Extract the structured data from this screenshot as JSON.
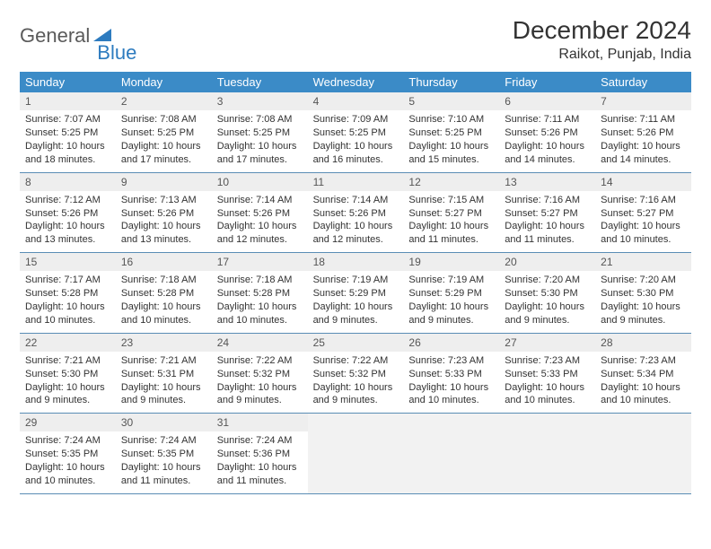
{
  "logo": {
    "text1": "General",
    "text2": "Blue"
  },
  "title": "December 2024",
  "location": "Raikot, Punjab, India",
  "colors": {
    "header_bg": "#3b8bc7",
    "header_fg": "#ffffff",
    "daynum_bg": "#eeeeee",
    "week_border": "#5a8db5",
    "logo_accent": "#2d7bbf",
    "logo_gray": "#5a5a5a"
  },
  "layout": {
    "columns": 7,
    "rows": 5,
    "cell_fontsize": 11,
    "header_fontsize": 13
  },
  "weekdays": [
    "Sunday",
    "Monday",
    "Tuesday",
    "Wednesday",
    "Thursday",
    "Friday",
    "Saturday"
  ],
  "days": [
    {
      "n": "1",
      "sunrise": "7:07 AM",
      "sunset": "5:25 PM",
      "dl1": "Daylight: 10 hours",
      "dl2": "and 18 minutes."
    },
    {
      "n": "2",
      "sunrise": "7:08 AM",
      "sunset": "5:25 PM",
      "dl1": "Daylight: 10 hours",
      "dl2": "and 17 minutes."
    },
    {
      "n": "3",
      "sunrise": "7:08 AM",
      "sunset": "5:25 PM",
      "dl1": "Daylight: 10 hours",
      "dl2": "and 17 minutes."
    },
    {
      "n": "4",
      "sunrise": "7:09 AM",
      "sunset": "5:25 PM",
      "dl1": "Daylight: 10 hours",
      "dl2": "and 16 minutes."
    },
    {
      "n": "5",
      "sunrise": "7:10 AM",
      "sunset": "5:25 PM",
      "dl1": "Daylight: 10 hours",
      "dl2": "and 15 minutes."
    },
    {
      "n": "6",
      "sunrise": "7:11 AM",
      "sunset": "5:26 PM",
      "dl1": "Daylight: 10 hours",
      "dl2": "and 14 minutes."
    },
    {
      "n": "7",
      "sunrise": "7:11 AM",
      "sunset": "5:26 PM",
      "dl1": "Daylight: 10 hours",
      "dl2": "and 14 minutes."
    },
    {
      "n": "8",
      "sunrise": "7:12 AM",
      "sunset": "5:26 PM",
      "dl1": "Daylight: 10 hours",
      "dl2": "and 13 minutes."
    },
    {
      "n": "9",
      "sunrise": "7:13 AM",
      "sunset": "5:26 PM",
      "dl1": "Daylight: 10 hours",
      "dl2": "and 13 minutes."
    },
    {
      "n": "10",
      "sunrise": "7:14 AM",
      "sunset": "5:26 PM",
      "dl1": "Daylight: 10 hours",
      "dl2": "and 12 minutes."
    },
    {
      "n": "11",
      "sunrise": "7:14 AM",
      "sunset": "5:26 PM",
      "dl1": "Daylight: 10 hours",
      "dl2": "and 12 minutes."
    },
    {
      "n": "12",
      "sunrise": "7:15 AM",
      "sunset": "5:27 PM",
      "dl1": "Daylight: 10 hours",
      "dl2": "and 11 minutes."
    },
    {
      "n": "13",
      "sunrise": "7:16 AM",
      "sunset": "5:27 PM",
      "dl1": "Daylight: 10 hours",
      "dl2": "and 11 minutes."
    },
    {
      "n": "14",
      "sunrise": "7:16 AM",
      "sunset": "5:27 PM",
      "dl1": "Daylight: 10 hours",
      "dl2": "and 10 minutes."
    },
    {
      "n": "15",
      "sunrise": "7:17 AM",
      "sunset": "5:28 PM",
      "dl1": "Daylight: 10 hours",
      "dl2": "and 10 minutes."
    },
    {
      "n": "16",
      "sunrise": "7:18 AM",
      "sunset": "5:28 PM",
      "dl1": "Daylight: 10 hours",
      "dl2": "and 10 minutes."
    },
    {
      "n": "17",
      "sunrise": "7:18 AM",
      "sunset": "5:28 PM",
      "dl1": "Daylight: 10 hours",
      "dl2": "and 10 minutes."
    },
    {
      "n": "18",
      "sunrise": "7:19 AM",
      "sunset": "5:29 PM",
      "dl1": "Daylight: 10 hours",
      "dl2": "and 9 minutes."
    },
    {
      "n": "19",
      "sunrise": "7:19 AM",
      "sunset": "5:29 PM",
      "dl1": "Daylight: 10 hours",
      "dl2": "and 9 minutes."
    },
    {
      "n": "20",
      "sunrise": "7:20 AM",
      "sunset": "5:30 PM",
      "dl1": "Daylight: 10 hours",
      "dl2": "and 9 minutes."
    },
    {
      "n": "21",
      "sunrise": "7:20 AM",
      "sunset": "5:30 PM",
      "dl1": "Daylight: 10 hours",
      "dl2": "and 9 minutes."
    },
    {
      "n": "22",
      "sunrise": "7:21 AM",
      "sunset": "5:30 PM",
      "dl1": "Daylight: 10 hours",
      "dl2": "and 9 minutes."
    },
    {
      "n": "23",
      "sunrise": "7:21 AM",
      "sunset": "5:31 PM",
      "dl1": "Daylight: 10 hours",
      "dl2": "and 9 minutes."
    },
    {
      "n": "24",
      "sunrise": "7:22 AM",
      "sunset": "5:32 PM",
      "dl1": "Daylight: 10 hours",
      "dl2": "and 9 minutes."
    },
    {
      "n": "25",
      "sunrise": "7:22 AM",
      "sunset": "5:32 PM",
      "dl1": "Daylight: 10 hours",
      "dl2": "and 9 minutes."
    },
    {
      "n": "26",
      "sunrise": "7:23 AM",
      "sunset": "5:33 PM",
      "dl1": "Daylight: 10 hours",
      "dl2": "and 10 minutes."
    },
    {
      "n": "27",
      "sunrise": "7:23 AM",
      "sunset": "5:33 PM",
      "dl1": "Daylight: 10 hours",
      "dl2": "and 10 minutes."
    },
    {
      "n": "28",
      "sunrise": "7:23 AM",
      "sunset": "5:34 PM",
      "dl1": "Daylight: 10 hours",
      "dl2": "and 10 minutes."
    },
    {
      "n": "29",
      "sunrise": "7:24 AM",
      "sunset": "5:35 PM",
      "dl1": "Daylight: 10 hours",
      "dl2": "and 10 minutes."
    },
    {
      "n": "30",
      "sunrise": "7:24 AM",
      "sunset": "5:35 PM",
      "dl1": "Daylight: 10 hours",
      "dl2": "and 11 minutes."
    },
    {
      "n": "31",
      "sunrise": "7:24 AM",
      "sunset": "5:36 PM",
      "dl1": "Daylight: 10 hours",
      "dl2": "and 11 minutes."
    }
  ],
  "labels": {
    "sunrise": "Sunrise: ",
    "sunset": "Sunset: "
  }
}
